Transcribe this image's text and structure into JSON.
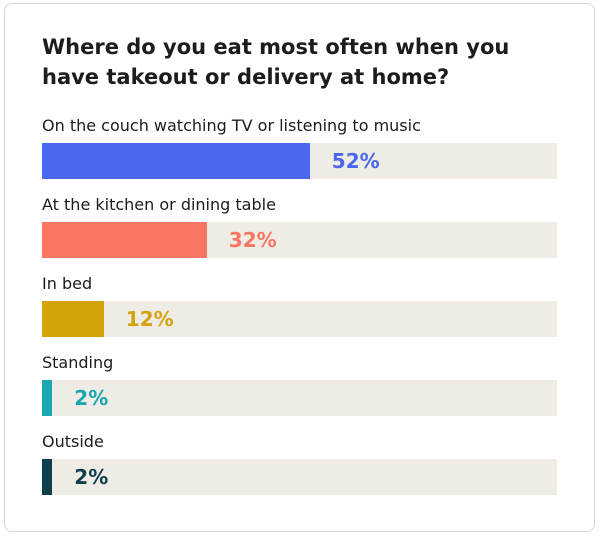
{
  "chart_data": {
    "type": "bar",
    "title": "Where do you eat most often when you have takeout or delivery at home?",
    "categories": [
      "On the couch watching TV or listening to music",
      "At the kitchen or dining table",
      "In bed",
      "Standing",
      "Outside"
    ],
    "values": [
      52,
      32,
      12,
      2,
      2
    ],
    "value_labels": [
      "52%",
      "32%",
      "12%",
      "2%",
      "2%"
    ],
    "colors": [
      "#4a68ef",
      "#f97664",
      "#d4a30c",
      "#1aa7b0",
      "#0f3f4a"
    ],
    "xlim": [
      0,
      100
    ],
    "orientation": "horizontal",
    "grid": false,
    "legend": "none"
  }
}
